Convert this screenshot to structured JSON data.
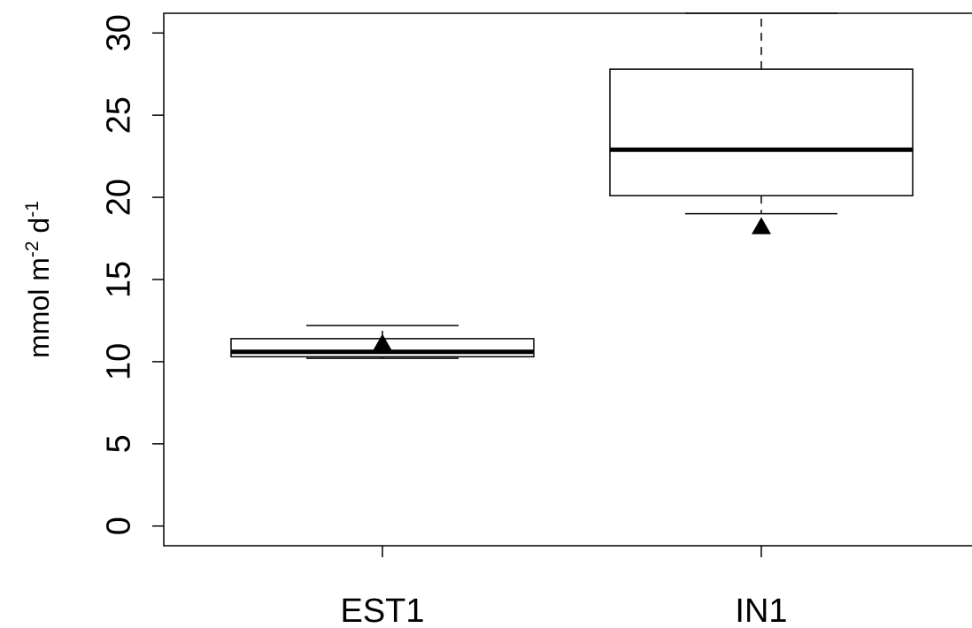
{
  "chart_data": {
    "type": "boxplot",
    "ylabel": {
      "base": "mmol m",
      "sup1": "-2",
      "mid": " d",
      "sup2": "-1"
    },
    "ylim": [
      -1.2,
      31.2
    ],
    "yticks": [
      0,
      5,
      10,
      15,
      20,
      25,
      30
    ],
    "categories": [
      "EST1",
      "IN1"
    ],
    "boxes": [
      {
        "category": "EST1",
        "whisker_low": 10.2,
        "q1": 10.3,
        "median": 10.6,
        "q3": 11.4,
        "whisker_high": 12.2,
        "mean": 11.1
      },
      {
        "category": "IN1",
        "whisker_low": 19.0,
        "q1": 20.1,
        "median": 22.9,
        "q3": 27.8,
        "whisker_high": 31.2,
        "mean": 18.2
      }
    ],
    "mean_marker": "filled-triangle",
    "grid": false,
    "legend": "none"
  }
}
